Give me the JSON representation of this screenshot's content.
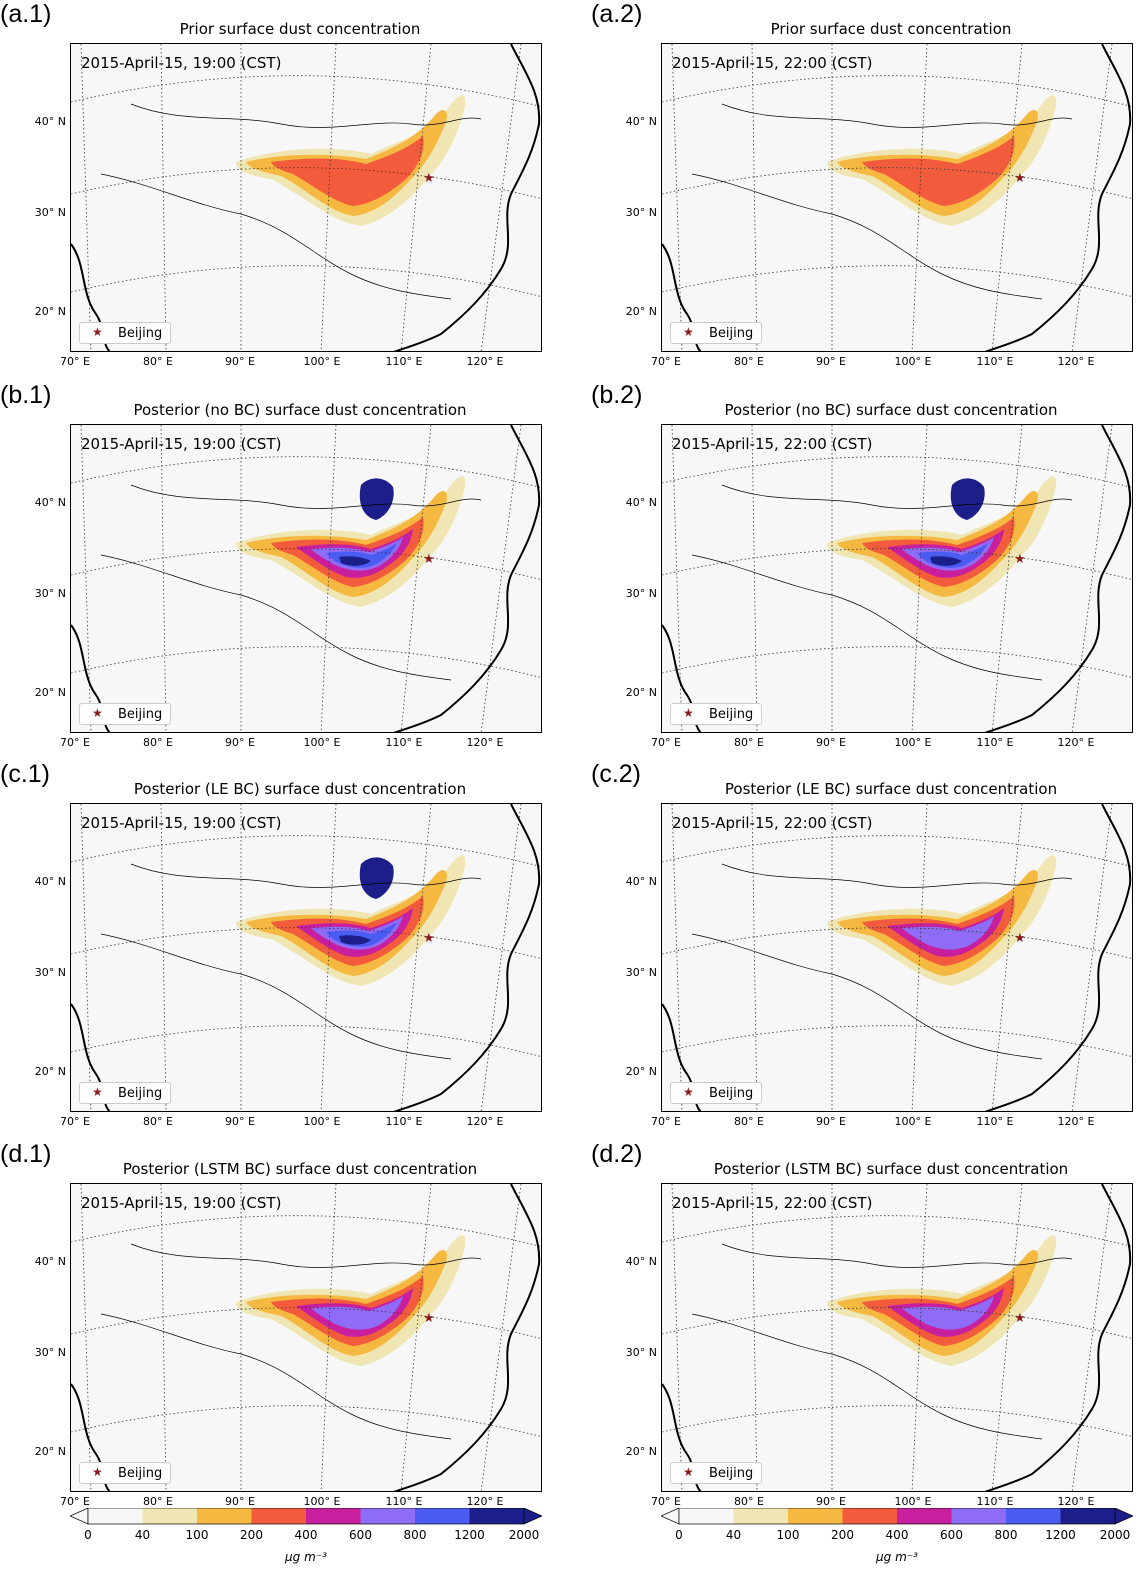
{
  "panels": [
    {
      "label": "(a.1)",
      "title": "Prior surface dust concentration",
      "timestamp": "2015-April-15, 19:00 (CST)",
      "intensity": 1
    },
    {
      "label": "(a.2)",
      "title": "Prior surface dust concentration",
      "timestamp": "2015-April-15, 22:00 (CST)",
      "intensity": 1
    },
    {
      "label": "(b.1)",
      "title": "Posterior (no BC) surface dust concentration",
      "timestamp": "2015-April-15, 19:00 (CST)",
      "intensity": 3
    },
    {
      "label": "(b.2)",
      "title": "Posterior (no BC) surface dust concentration",
      "timestamp": "2015-April-15, 22:00 (CST)",
      "intensity": 3
    },
    {
      "label": "(c.1)",
      "title": "Posterior (LE BC) surface dust concentration",
      "timestamp": "2015-April-15, 19:00 (CST)",
      "intensity": 3
    },
    {
      "label": "(c.2)",
      "title": "Posterior (LE BC) surface dust concentration",
      "timestamp": "2015-April-15, 22:00 (CST)",
      "intensity": 2
    },
    {
      "label": "(d.1)",
      "title": "Posterior (LSTM BC) surface dust concentration",
      "timestamp": "2015-April-15, 19:00 (CST)",
      "intensity": 2
    },
    {
      "label": "(d.2)",
      "title": "Posterior (LSTM BC) surface dust concentration",
      "timestamp": "2015-April-15, 22:00 (CST)",
      "intensity": 2
    }
  ],
  "legend_label": "Beijing",
  "lat_labels": [
    "40° N",
    "30° N",
    "20° N"
  ],
  "lon_labels": [
    "70° E",
    "80° E",
    "90° E",
    "100° E",
    "110° E",
    "120° E"
  ],
  "colorbar": {
    "ticks": [
      "0",
      "40",
      "100",
      "200",
      "400",
      "600",
      "800",
      "1200",
      "2000"
    ],
    "colors": [
      "#f7f7f7",
      "#f0e6b4",
      "#f5b942",
      "#f25c3c",
      "#c81f9e",
      "#8e6cf5",
      "#4a5cf2",
      "#1c1f8a"
    ],
    "units": "μg m⁻³"
  },
  "colors": {
    "beijing_marker": "#8b1a1a",
    "map_background": "#f7f7f7"
  }
}
